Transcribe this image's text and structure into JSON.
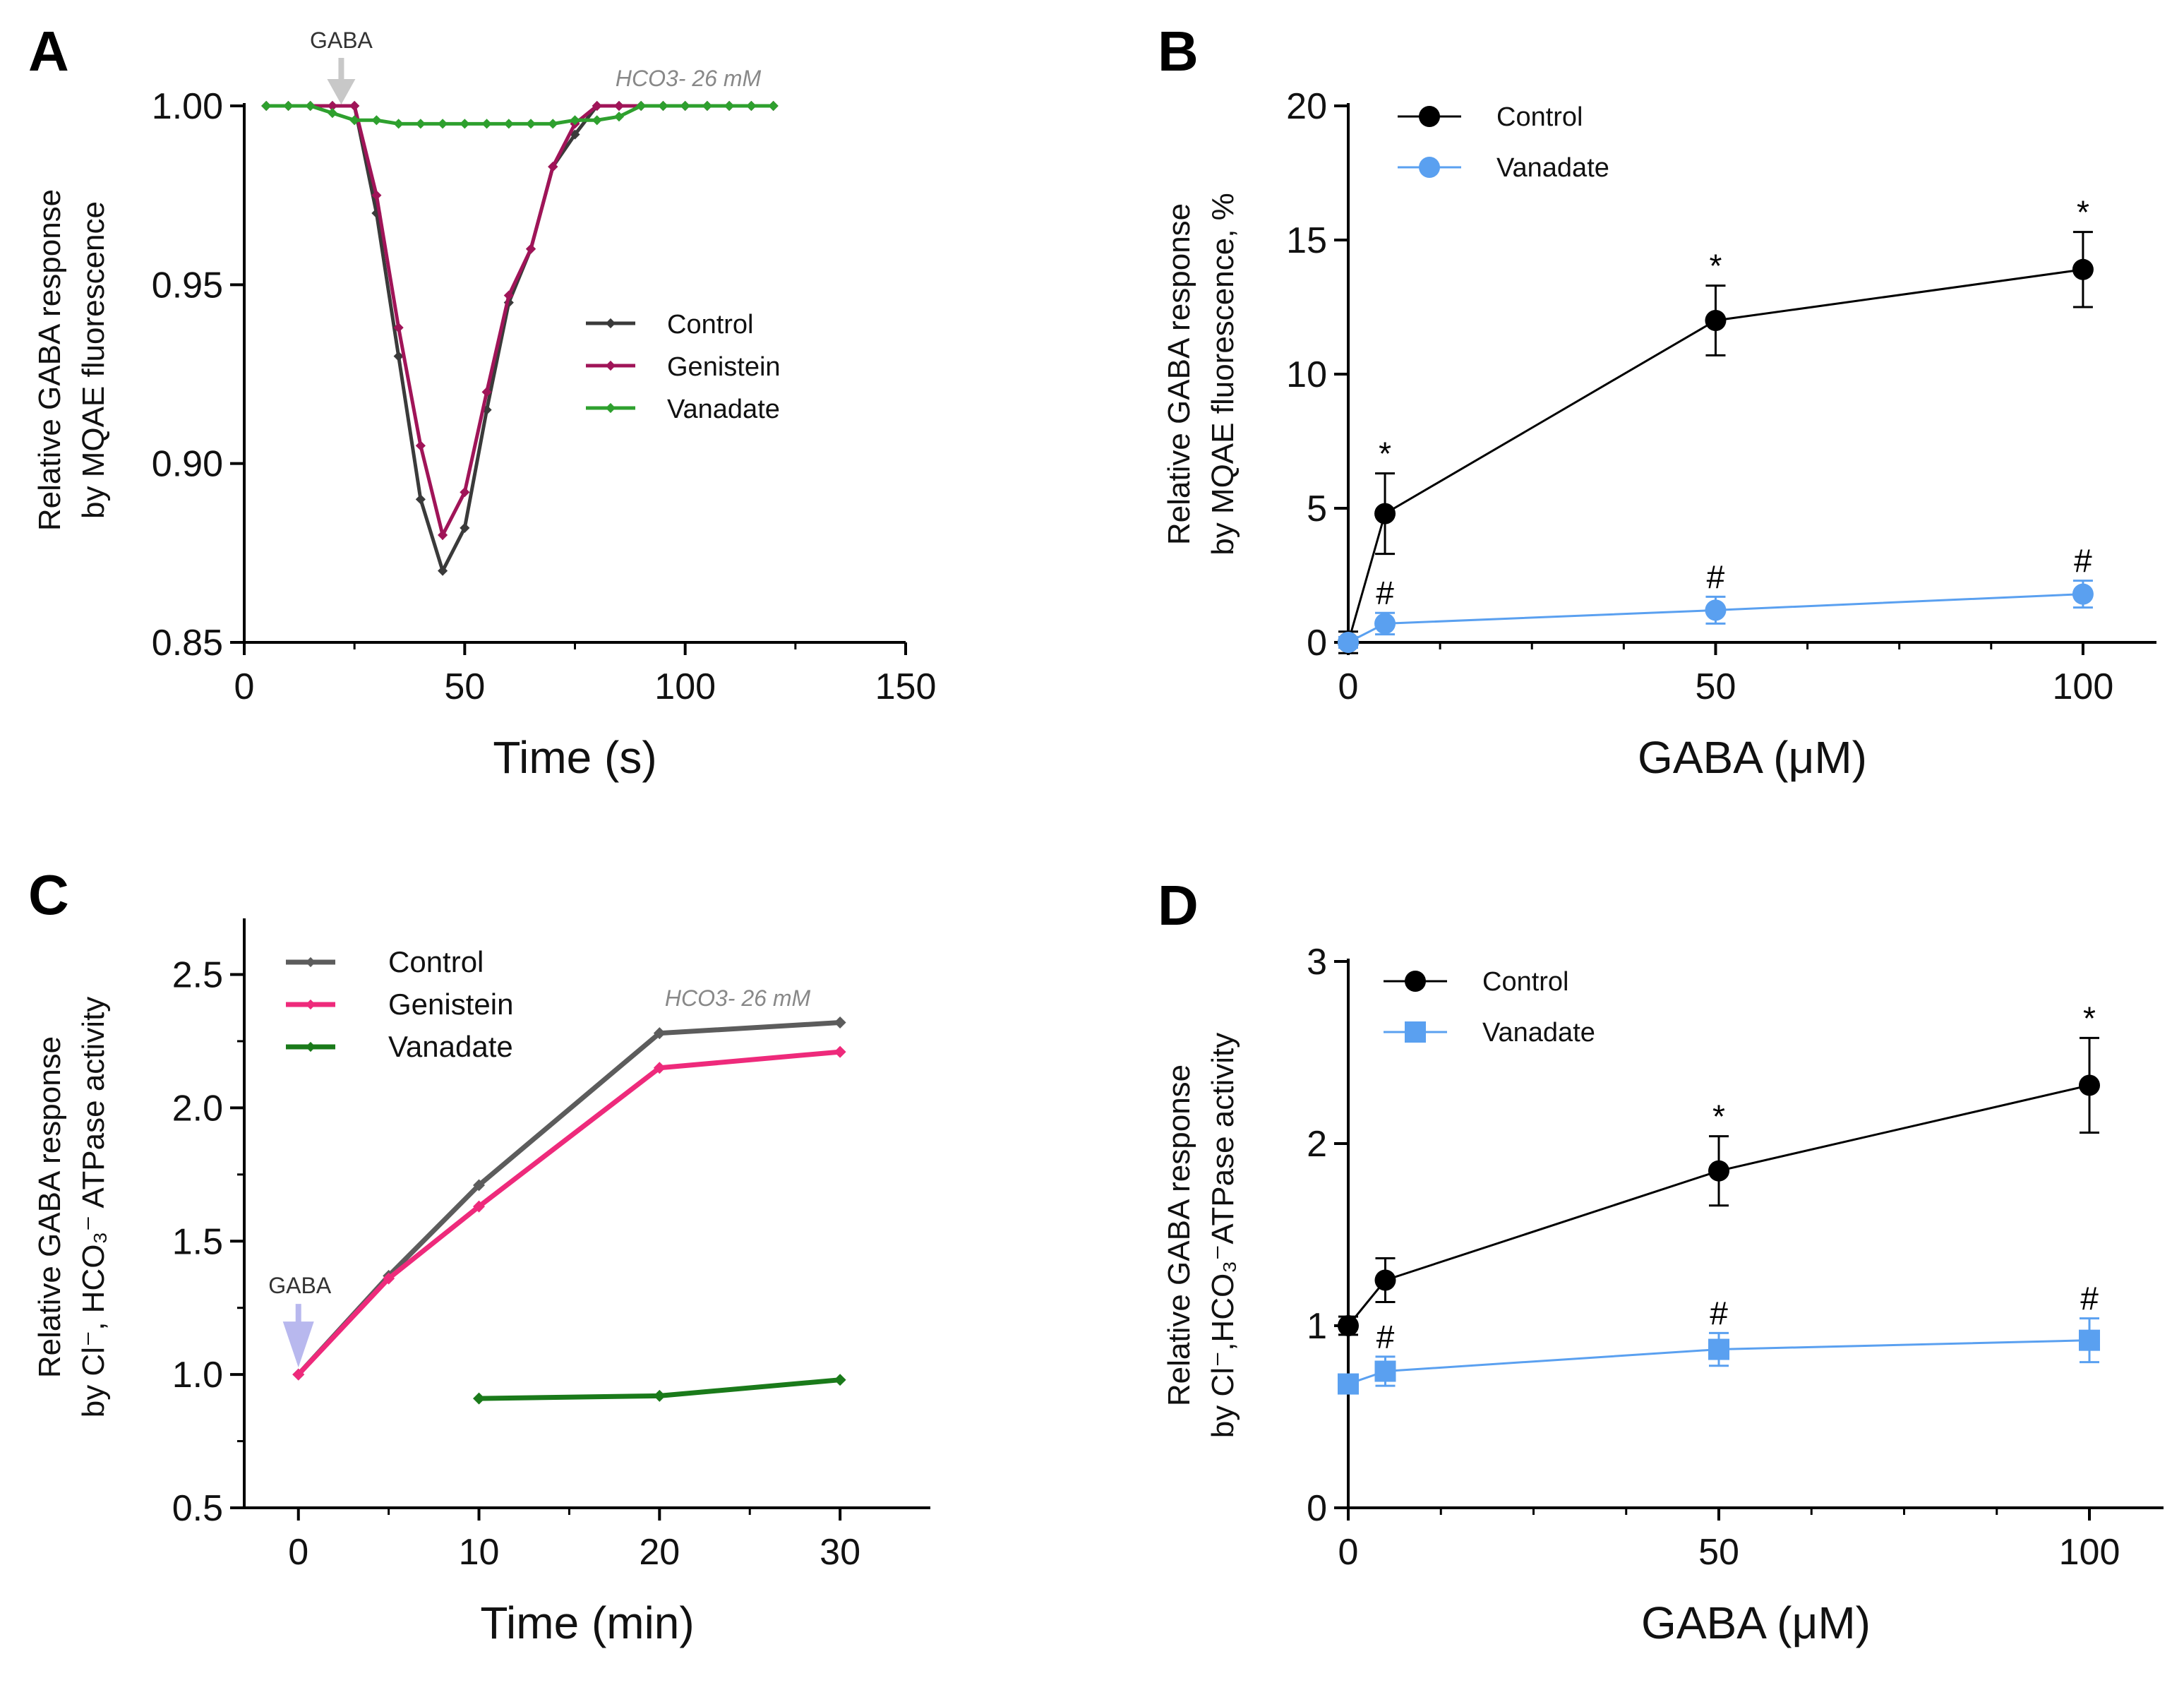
{
  "chart_data": [
    {
      "panel": "A",
      "type": "line",
      "xlabel": "Time (s)",
      "ylabel_line1": "Relative GABA response",
      "ylabel_line2": "by MQAE fluorescence",
      "xlim": [
        0,
        150
      ],
      "ylim": [
        0.85,
        1.0
      ],
      "xticks": [
        "0",
        "50",
        "100",
        "150"
      ],
      "yticks": [
        "0.85",
        "0.90",
        "0.95",
        "1.00"
      ],
      "annotation": "HCO3- 26 mM",
      "arrow_label": "GABA",
      "arrow_x": 22,
      "series": [
        {
          "name": "Control",
          "color": "#3a3a3a",
          "x": [
            5,
            10,
            15,
            20,
            25,
            30,
            35,
            40,
            45,
            50,
            55,
            60,
            65,
            70,
            75,
            80,
            85,
            90,
            95,
            100,
            105,
            110,
            115,
            120
          ],
          "values": [
            1.0,
            1.0,
            1.0,
            1.0,
            1.0,
            0.97,
            0.93,
            0.89,
            0.87,
            0.882,
            0.915,
            0.945,
            0.96,
            0.983,
            0.992,
            1.0,
            1.0,
            1.0,
            1.0,
            1.0,
            1.0,
            1.0,
            1.0,
            1.0
          ]
        },
        {
          "name": "Genistein",
          "color": "#a01458",
          "x": [
            5,
            10,
            15,
            20,
            25,
            30,
            35,
            40,
            45,
            50,
            55,
            60,
            65,
            70,
            75,
            80,
            85,
            90,
            95,
            100,
            105,
            110,
            115,
            120
          ],
          "values": [
            1.0,
            1.0,
            1.0,
            1.0,
            1.0,
            0.975,
            0.938,
            0.905,
            0.88,
            0.892,
            0.92,
            0.947,
            0.96,
            0.983,
            0.995,
            1.0,
            1.0,
            1.0,
            1.0,
            1.0,
            1.0,
            1.0,
            1.0,
            1.0
          ]
        },
        {
          "name": "Vanadate",
          "color": "#2ea02e",
          "x": [
            5,
            10,
            15,
            20,
            25,
            30,
            35,
            40,
            45,
            50,
            55,
            60,
            65,
            70,
            75,
            80,
            85,
            90,
            95,
            100,
            105,
            110,
            115,
            120
          ],
          "values": [
            1.0,
            1.0,
            1.0,
            0.998,
            0.996,
            0.996,
            0.995,
            0.995,
            0.995,
            0.995,
            0.995,
            0.995,
            0.995,
            0.995,
            0.996,
            0.996,
            0.997,
            1.0,
            1.0,
            1.0,
            1.0,
            1.0,
            1.0,
            1.0
          ]
        }
      ]
    },
    {
      "panel": "B",
      "type": "line",
      "xlabel": "GABA (μM)",
      "ylabel_line1": "Relative GABA response",
      "ylabel_line2": "by MQAE fluorescence, %",
      "xlim": [
        0,
        110
      ],
      "ylim": [
        0,
        20
      ],
      "xticks": [
        "0",
        "50",
        "100"
      ],
      "yticks": [
        "0",
        "5",
        "10",
        "15",
        "20"
      ],
      "series": [
        {
          "name": "Control",
          "color": "#000000",
          "marker": "circle",
          "x": [
            0,
            5,
            50,
            100
          ],
          "values": [
            0,
            4.8,
            12.0,
            13.9
          ],
          "errors": [
            0.4,
            1.5,
            1.3,
            1.4
          ],
          "significance": [
            "",
            "*",
            "*",
            "*"
          ]
        },
        {
          "name": "Vanadate",
          "color": "#5aa0f0",
          "marker": "circle",
          "x": [
            0,
            5,
            50,
            100
          ],
          "values": [
            0,
            0.7,
            1.2,
            1.8
          ],
          "errors": [
            0.2,
            0.4,
            0.5,
            0.5
          ],
          "significance": [
            "",
            "#",
            "#",
            "#"
          ]
        }
      ]
    },
    {
      "panel": "C",
      "type": "line",
      "xlabel": "Time (min)",
      "ylabel_line1": "Relative GABA response",
      "ylabel_line2": "by Cl⁻, HCO₃⁻ ATPase activity",
      "xlim": [
        -3,
        35
      ],
      "ylim": [
        0.5,
        2.7
      ],
      "xticks": [
        "0",
        "10",
        "20",
        "30"
      ],
      "yticks": [
        "0.5",
        "1.0",
        "1.5",
        "2.0",
        "2.5"
      ],
      "annotation": "HCO3- 26 mM",
      "arrow_label": "GABA",
      "arrow_x": 0,
      "series": [
        {
          "name": "Control",
          "color": "#5c5c5c",
          "x": [
            0,
            5,
            10,
            20,
            30
          ],
          "values": [
            1.0,
            1.37,
            1.71,
            2.28,
            2.32
          ]
        },
        {
          "name": "Genistein",
          "color": "#ee2a7b",
          "x": [
            0,
            5,
            10,
            20,
            30
          ],
          "values": [
            1.0,
            1.36,
            1.63,
            2.15,
            2.21
          ]
        },
        {
          "name": "Vanadate",
          "color": "#1a7a1a",
          "x": [
            10,
            20,
            30
          ],
          "values": [
            0.91,
            0.92,
            0.98
          ]
        }
      ]
    },
    {
      "panel": "D",
      "type": "line",
      "xlabel": "GABA (μM)",
      "ylabel_line1": "Relative GABA response",
      "ylabel_line2": "by Cl⁻,HCO₃⁻ATPase activity",
      "xlim": [
        0,
        110
      ],
      "ylim": [
        0,
        3
      ],
      "xticks": [
        "0",
        "50",
        "100"
      ],
      "yticks": [
        "0",
        "1",
        "2",
        "3"
      ],
      "series": [
        {
          "name": "Control",
          "color": "#000000",
          "marker": "circle",
          "x": [
            0,
            5,
            50,
            100
          ],
          "values": [
            1.0,
            1.25,
            1.85,
            2.32
          ],
          "errors": [
            0.05,
            0.12,
            0.19,
            0.26
          ],
          "significance": [
            "",
            "",
            "*",
            "*"
          ]
        },
        {
          "name": "Vanadate",
          "color": "#5aa0f0",
          "marker": "square",
          "x": [
            0,
            5,
            50,
            100
          ],
          "values": [
            0.68,
            0.75,
            0.87,
            0.92
          ],
          "errors": [
            0.03,
            0.08,
            0.09,
            0.12
          ],
          "significance": [
            "",
            "#",
            "#",
            "#"
          ]
        }
      ]
    }
  ]
}
